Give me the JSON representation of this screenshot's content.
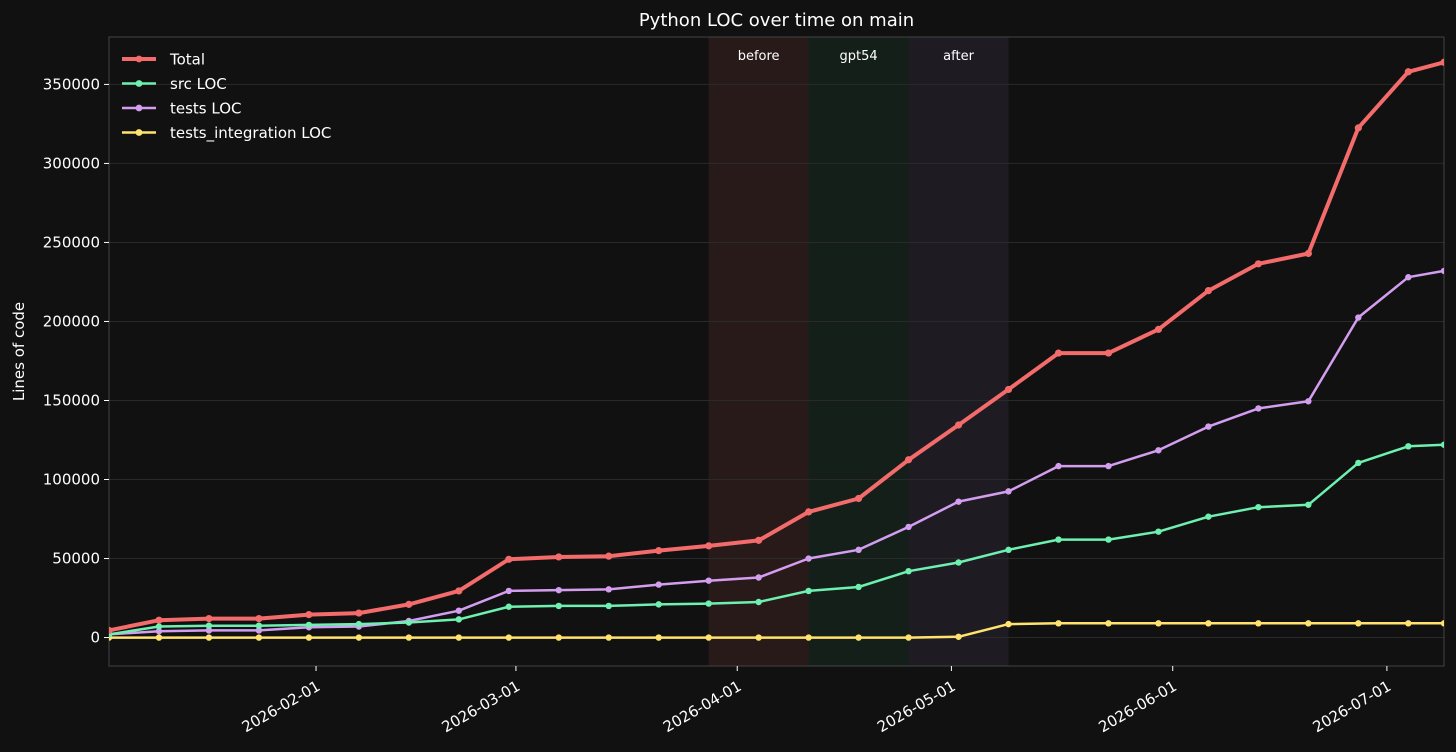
{
  "chart_data": {
    "type": "line",
    "title": "Python LOC over time on main",
    "xlabel": "",
    "ylabel": "Lines of code",
    "xlim": [
      "2026-01-03",
      "2026-07-09"
    ],
    "ylim": [
      -18000,
      380000
    ],
    "x_ticks": [
      "2026-02-01",
      "2026-03-01",
      "2026-04-01",
      "2026-05-01",
      "2026-06-01",
      "2026-07-01"
    ],
    "y_ticks": [
      0,
      50000,
      100000,
      150000,
      200000,
      250000,
      300000,
      350000
    ],
    "grid": true,
    "legend_position": "top-left",
    "regions": [
      {
        "label": "before",
        "start": "2026-03-28",
        "end": "2026-04-11",
        "color": "#e06666"
      },
      {
        "label": "gpt54",
        "start": "2026-04-11",
        "end": "2026-04-25",
        "color": "#2e8b57"
      },
      {
        "label": "after",
        "start": "2026-04-25",
        "end": "2026-05-09",
        "color": "#8a6fa8"
      }
    ],
    "x": [
      "2026-01-03",
      "2026-01-10",
      "2026-01-17",
      "2026-01-24",
      "2026-01-31",
      "2026-02-07",
      "2026-02-14",
      "2026-02-21",
      "2026-02-28",
      "2026-03-07",
      "2026-03-14",
      "2026-03-21",
      "2026-03-28",
      "2026-04-04",
      "2026-04-11",
      "2026-04-18",
      "2026-04-25",
      "2026-05-02",
      "2026-05-09",
      "2026-05-16",
      "2026-05-23",
      "2026-05-30",
      "2026-06-06",
      "2026-06-13",
      "2026-06-20",
      "2026-06-27",
      "2026-07-04",
      "2026-07-09"
    ],
    "series": [
      {
        "name": "Total",
        "color": "#f36b6b",
        "width": 4,
        "values": [
          4500,
          11000,
          12000,
          12000,
          14500,
          15500,
          21000,
          29500,
          49500,
          51000,
          51500,
          55000,
          58000,
          61500,
          79500,
          88000,
          112500,
          134500,
          157000,
          180000,
          180000,
          195000,
          219500,
          236500,
          243000,
          322500,
          358000,
          364000
        ]
      },
      {
        "name": "src LOC",
        "color": "#6ef0b0",
        "width": 2.5,
        "values": [
          2000,
          7000,
          7500,
          7500,
          8000,
          8500,
          9500,
          11500,
          19500,
          20000,
          20000,
          21000,
          21500,
          22500,
          29500,
          32000,
          42000,
          47500,
          55500,
          62000,
          62000,
          67000,
          76500,
          82500,
          84000,
          110500,
          121000,
          122000
        ]
      },
      {
        "name": "tests LOC",
        "color": "#d49ef0",
        "width": 2.5,
        "values": [
          2000,
          4000,
          4500,
          4500,
          6500,
          7000,
          10500,
          17000,
          29500,
          30000,
          30500,
          33500,
          36000,
          38000,
          50000,
          55500,
          70000,
          86000,
          92500,
          108500,
          108500,
          118500,
          133500,
          145000,
          149500,
          202500,
          228000,
          232000
        ]
      },
      {
        "name": "tests_integration LOC",
        "color": "#ffe36e",
        "width": 2.5,
        "values": [
          0,
          0,
          0,
          0,
          0,
          0,
          0,
          0,
          0,
          0,
          0,
          0,
          0,
          0,
          0,
          0,
          0,
          500,
          8500,
          9000,
          9000,
          9000,
          9000,
          9000,
          9000,
          9000,
          9000,
          9000
        ]
      }
    ]
  }
}
